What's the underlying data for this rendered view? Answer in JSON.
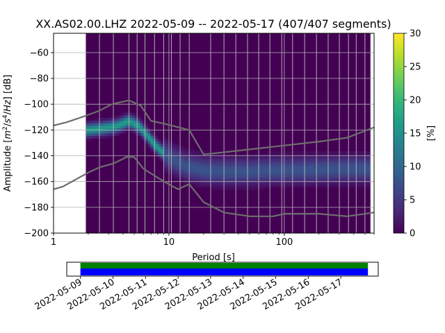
{
  "chart_data": {
    "type": "heatmap",
    "title": "XX.AS02.00.LHZ   2022-05-09 -- 2022-05-17  (407/407 segments)",
    "xlabel": "Period [s]",
    "ylabel_parts": [
      "Amplitude [",
      "m",
      "2",
      "/",
      "s",
      "4",
      "/",
      "Hz",
      "] [dB]"
    ],
    "x_scale": "log",
    "xlim": [
      1,
      600
    ],
    "ylim": [
      -200,
      -45
    ],
    "x_ticks": [
      {
        "v": 1,
        "label": "1"
      },
      {
        "v": 10,
        "label": "10"
      },
      {
        "v": 100,
        "label": "100"
      }
    ],
    "y_ticks": [
      -200,
      -180,
      -160,
      -140,
      -120,
      -100,
      -80,
      -60
    ],
    "grid": true,
    "data_period_range": [
      1.9,
      560
    ],
    "colorbar": {
      "label": "[%]",
      "min": 0,
      "max": 30,
      "ticks": [
        0,
        5,
        10,
        15,
        20,
        25,
        30
      ],
      "colormap": "viridis"
    },
    "psd_mode_curve": [
      [
        1.9,
        -120
      ],
      [
        2.5,
        -119
      ],
      [
        3.5,
        -117
      ],
      [
        4.5,
        -113
      ],
      [
        5.5,
        -117
      ],
      [
        6.5,
        -124
      ],
      [
        7.5,
        -131
      ],
      [
        9,
        -138
      ],
      [
        11,
        -143
      ],
      [
        14,
        -148
      ],
      [
        20,
        -151
      ],
      [
        30,
        -152
      ],
      [
        50,
        -152
      ],
      [
        80,
        -151
      ],
      [
        150,
        -151
      ],
      [
        300,
        -150
      ],
      [
        560,
        -150
      ]
    ],
    "noise_model_high": [
      [
        1,
        -116.5
      ],
      [
        1.3,
        -114
      ],
      [
        1.9,
        -109
      ],
      [
        2.5,
        -105
      ],
      [
        3.2,
        -100
      ],
      [
        4.5,
        -97
      ],
      [
        5.7,
        -101
      ],
      [
        7,
        -113
      ],
      [
        9,
        -115
      ],
      [
        15,
        -120
      ],
      [
        20,
        -139
      ],
      [
        40,
        -136
      ],
      [
        100,
        -132
      ],
      [
        200,
        -129
      ],
      [
        350,
        -126
      ],
      [
        600,
        -118
      ]
    ],
    "noise_model_low": [
      [
        1,
        -166
      ],
      [
        1.2,
        -164
      ],
      [
        2,
        -153
      ],
      [
        2.5,
        -149
      ],
      [
        3.3,
        -146
      ],
      [
        4.3,
        -141
      ],
      [
        5,
        -141
      ],
      [
        6,
        -150
      ],
      [
        8,
        -157
      ],
      [
        9.5,
        -161
      ],
      [
        12,
        -166
      ],
      [
        15,
        -162
      ],
      [
        20,
        -176
      ],
      [
        30,
        -184
      ],
      [
        50,
        -187
      ],
      [
        80,
        -187
      ],
      [
        100,
        -185
      ],
      [
        200,
        -185
      ],
      [
        350,
        -187
      ],
      [
        600,
        -184
      ]
    ],
    "vertical_lines_period": [
      1.9,
      2.5,
      3.3,
      4.5,
      5.3,
      6.2,
      7.5,
      9.0,
      10.5,
      12.5,
      15.0,
      23,
      30,
      38,
      48,
      60,
      75,
      95,
      118,
      150,
      190,
      240,
      300,
      360,
      420,
      500,
      560
    ],
    "timeline": {
      "start": "2022-05-09",
      "end": "2022-05-17",
      "tick_labels": [
        "2022-05-09",
        "2022-05-10",
        "2022-05-11",
        "2022-05-12",
        "2022-05-13",
        "2022-05-14",
        "2022-05-15",
        "2022-05-16",
        "2022-05-17"
      ],
      "data_coverage": [
        "2022-05-09",
        "2022-05-17 20:00"
      ],
      "colors": {
        "available": "#008000",
        "used": "#0000ff"
      }
    },
    "colors": {
      "curve": "#6e6e6e",
      "grid": "#b0b0b0",
      "background": "#440154"
    }
  }
}
